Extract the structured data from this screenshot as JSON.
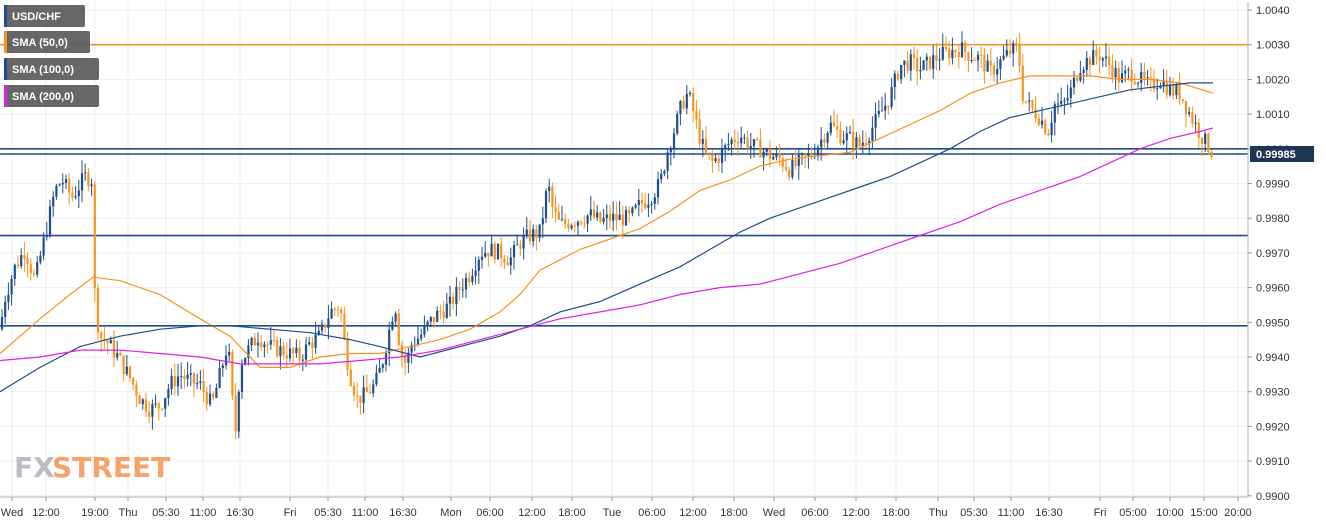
{
  "chart_data": {
    "type": "line",
    "subtype": "candlestick-with-moving-averages",
    "symbol": "USD/CHF",
    "legend": [
      {
        "label": "USD/CHF",
        "color": "#1f4e8c"
      },
      {
        "label": "SMA (50,0)",
        "color": "#f7931e"
      },
      {
        "label": "SMA (100,0)",
        "color": "#1f4e8c"
      },
      {
        "label": "SMA (200,0)",
        "color": "#e020e0"
      }
    ],
    "legend_position": "top-left",
    "y_ticks": [
      "1.0040",
      "1.0030",
      "1.0020",
      "1.0010",
      "1.0000",
      "0.9990",
      "0.9980",
      "0.9970",
      "0.9960",
      "0.9950",
      "0.9940",
      "0.9930",
      "0.9920",
      "0.9910",
      "0.9900"
    ],
    "ylim": [
      0.9895,
      1.0045
    ],
    "x_ticks": [
      "Wed",
      "12:00",
      "19:00",
      "Thu",
      "05:30",
      "11:00",
      "16:30",
      "Fri",
      "05:30",
      "11:00",
      "16:30",
      "Mon",
      "06:00",
      "12:00",
      "18:00",
      "Tue",
      "06:00",
      "12:00",
      "18:00",
      "Wed",
      "06:00",
      "12:00",
      "18:00",
      "Thu",
      "05:30",
      "11:00",
      "16:30",
      "Fri",
      "05:00",
      "10:00",
      "15:00",
      "20:00"
    ],
    "current_price": "0.99985",
    "horizontal_levels": [
      {
        "value": 1.003,
        "color": "#f7931e"
      },
      {
        "value": 1.0,
        "color": "#1f4e8c"
      },
      {
        "value": 0.99985,
        "color": "#1f4e8c"
      },
      {
        "value": 0.9975,
        "color": "#1f4e8c"
      },
      {
        "value": 0.9949,
        "color": "#1f4e8c"
      }
    ],
    "price_path": [
      [
        0,
        0.9948
      ],
      [
        5,
        0.9957
      ],
      [
        15,
        0.9966
      ],
      [
        25,
        0.9971
      ],
      [
        35,
        0.9962
      ],
      [
        45,
        0.9975
      ],
      [
        55,
        0.9988
      ],
      [
        62,
        0.9991
      ],
      [
        72,
        0.9986
      ],
      [
        85,
        0.9992
      ],
      [
        93,
        0.9991
      ],
      [
        95,
        0.9955
      ],
      [
        100,
        0.9946
      ],
      [
        108,
        0.9944
      ],
      [
        118,
        0.994
      ],
      [
        130,
        0.9934
      ],
      [
        140,
        0.9928
      ],
      [
        150,
        0.9925
      ],
      [
        160,
        0.9926
      ],
      [
        170,
        0.9932
      ],
      [
        180,
        0.9935
      ],
      [
        190,
        0.9933
      ],
      [
        200,
        0.9932
      ],
      [
        212,
        0.9926
      ],
      [
        220,
        0.9935
      ],
      [
        228,
        0.9944
      ],
      [
        233,
        0.9925
      ],
      [
        236,
        0.9918
      ],
      [
        240,
        0.9938
      ],
      [
        248,
        0.9942
      ],
      [
        258,
        0.9946
      ],
      [
        270,
        0.9943
      ],
      [
        280,
        0.9942
      ],
      [
        290,
        0.9941
      ],
      [
        300,
        0.994
      ],
      [
        310,
        0.9944
      ],
      [
        320,
        0.9946
      ],
      [
        330,
        0.9953
      ],
      [
        340,
        0.9955
      ],
      [
        345,
        0.9943
      ],
      [
        350,
        0.9935
      ],
      [
        357,
        0.9928
      ],
      [
        365,
        0.9929
      ],
      [
        375,
        0.9932
      ],
      [
        382,
        0.9938
      ],
      [
        388,
        0.9946
      ],
      [
        395,
        0.9956
      ],
      [
        400,
        0.9942
      ],
      [
        406,
        0.9938
      ],
      [
        412,
        0.9944
      ],
      [
        420,
        0.9946
      ],
      [
        430,
        0.995
      ],
      [
        440,
        0.9953
      ],
      [
        450,
        0.9955
      ],
      [
        460,
        0.996
      ],
      [
        470,
        0.9964
      ],
      [
        480,
        0.997
      ],
      [
        490,
        0.9971
      ],
      [
        500,
        0.997
      ],
      [
        510,
        0.9968
      ],
      [
        520,
        0.9973
      ],
      [
        530,
        0.9975
      ],
      [
        540,
        0.9976
      ],
      [
        548,
        0.999
      ],
      [
        553,
        0.9982
      ],
      [
        560,
        0.9978
      ],
      [
        570,
        0.9979
      ],
      [
        580,
        0.998
      ],
      [
        590,
        0.9981
      ],
      [
        600,
        0.9979
      ],
      [
        610,
        0.998
      ],
      [
        620,
        0.998
      ],
      [
        630,
        0.998
      ],
      [
        640,
        0.9984
      ],
      [
        650,
        0.9986
      ],
      [
        660,
        0.999
      ],
      [
        668,
        1.0
      ],
      [
        675,
        1.0006
      ],
      [
        682,
        1.0013
      ],
      [
        688,
        1.0016
      ],
      [
        694,
        1.001
      ],
      [
        700,
        1.0003
      ],
      [
        706,
        0.9998
      ],
      [
        712,
        0.9996
      ],
      [
        720,
        0.9998
      ],
      [
        730,
        1.0002
      ],
      [
        740,
        1.0004
      ],
      [
        750,
        1.0001
      ],
      [
        760,
        1.0
      ],
      [
        770,
        0.9998
      ],
      [
        780,
        0.9997
      ],
      [
        790,
        0.9994
      ],
      [
        800,
        0.9996
      ],
      [
        810,
        0.9998
      ],
      [
        820,
        1.0002
      ],
      [
        830,
        1.0007
      ],
      [
        840,
        1.0004
      ],
      [
        850,
        1.0003
      ],
      [
        860,
        1.0001
      ],
      [
        870,
        1.0005
      ],
      [
        880,
        1.001
      ],
      [
        890,
        1.0015
      ],
      [
        900,
        1.0024
      ],
      [
        910,
        1.0025
      ],
      [
        920,
        1.0023
      ],
      [
        930,
        1.0025
      ],
      [
        940,
        1.0027
      ],
      [
        950,
        1.0028
      ],
      [
        960,
        1.0029
      ],
      [
        970,
        1.0027
      ],
      [
        980,
        1.0026
      ],
      [
        990,
        1.0022
      ],
      [
        1000,
        1.0025
      ],
      [
        1010,
        1.0028
      ],
      [
        1018,
        1.0029
      ],
      [
        1023,
        1.0015
      ],
      [
        1030,
        1.0012
      ],
      [
        1040,
        1.0009
      ],
      [
        1048,
        1.0005
      ],
      [
        1055,
        1.0013
      ],
      [
        1062,
        1.0012
      ],
      [
        1070,
        1.0016
      ],
      [
        1080,
        1.0024
      ],
      [
        1090,
        1.0026
      ],
      [
        1100,
        1.0027
      ],
      [
        1110,
        1.0024
      ],
      [
        1120,
        1.002
      ],
      [
        1130,
        1.0022
      ],
      [
        1140,
        1.002
      ],
      [
        1150,
        1.0018
      ],
      [
        1160,
        1.002
      ],
      [
        1170,
        1.0017
      ],
      [
        1180,
        1.0016
      ],
      [
        1190,
        1.001
      ],
      [
        1197,
        1.0006
      ],
      [
        1203,
        1.0003
      ],
      [
        1210,
        1.0
      ],
      [
        1214,
        0.99985
      ]
    ],
    "sma50": [
      [
        0,
        0.9941
      ],
      [
        40,
        0.9951
      ],
      [
        70,
        0.9958
      ],
      [
        93,
        0.9963
      ],
      [
        120,
        0.9962
      ],
      [
        160,
        0.9958
      ],
      [
        200,
        0.9951
      ],
      [
        230,
        0.9946
      ],
      [
        260,
        0.9937
      ],
      [
        290,
        0.9937
      ],
      [
        320,
        0.994
      ],
      [
        350,
        0.9941
      ],
      [
        380,
        0.9941
      ],
      [
        410,
        0.9943
      ],
      [
        440,
        0.9945
      ],
      [
        470,
        0.9948
      ],
      [
        500,
        0.9953
      ],
      [
        520,
        0.9958
      ],
      [
        540,
        0.9965
      ],
      [
        560,
        0.9968
      ],
      [
        580,
        0.9971
      ],
      [
        610,
        0.9974
      ],
      [
        640,
        0.9977
      ],
      [
        670,
        0.9982
      ],
      [
        700,
        0.9988
      ],
      [
        730,
        0.9991
      ],
      [
        760,
        0.9995
      ],
      [
        790,
        0.9997
      ],
      [
        820,
        0.9998
      ],
      [
        850,
        0.9999
      ],
      [
        880,
        1.0003
      ],
      [
        910,
        1.0007
      ],
      [
        940,
        1.0011
      ],
      [
        970,
        1.0016
      ],
      [
        1000,
        1.0019
      ],
      [
        1030,
        1.0021
      ],
      [
        1060,
        1.0021
      ],
      [
        1090,
        1.0021
      ],
      [
        1120,
        1.002
      ],
      [
        1150,
        1.002
      ],
      [
        1180,
        1.0019
      ],
      [
        1213,
        1.0016
      ]
    ],
    "sma100": [
      [
        0,
        0.993
      ],
      [
        40,
        0.9937
      ],
      [
        80,
        0.9943
      ],
      [
        120,
        0.9946
      ],
      [
        160,
        0.9948
      ],
      [
        200,
        0.9949
      ],
      [
        230,
        0.9949
      ],
      [
        270,
        0.9948
      ],
      [
        310,
        0.9947
      ],
      [
        350,
        0.9945
      ],
      [
        380,
        0.9943
      ],
      [
        420,
        0.994
      ],
      [
        460,
        0.9943
      ],
      [
        500,
        0.9946
      ],
      [
        530,
        0.9949
      ],
      [
        560,
        0.9953
      ],
      [
        600,
        0.9956
      ],
      [
        640,
        0.9961
      ],
      [
        680,
        0.9966
      ],
      [
        710,
        0.9971
      ],
      [
        740,
        0.9976
      ],
      [
        770,
        0.998
      ],
      [
        800,
        0.9983
      ],
      [
        830,
        0.9986
      ],
      [
        860,
        0.9989
      ],
      [
        890,
        0.9992
      ],
      [
        920,
        0.9996
      ],
      [
        950,
        1.0
      ],
      [
        980,
        1.0005
      ],
      [
        1010,
        1.0009
      ],
      [
        1040,
        1.0011
      ],
      [
        1070,
        1.0013
      ],
      [
        1100,
        1.0015
      ],
      [
        1130,
        1.0017
      ],
      [
        1160,
        1.0018
      ],
      [
        1190,
        1.0019
      ],
      [
        1213,
        1.0019
      ]
    ],
    "sma200": [
      [
        0,
        0.9939
      ],
      [
        40,
        0.994
      ],
      [
        80,
        0.9942
      ],
      [
        120,
        0.9942
      ],
      [
        160,
        0.9941
      ],
      [
        200,
        0.994
      ],
      [
        240,
        0.9938
      ],
      [
        280,
        0.9938
      ],
      [
        320,
        0.9938
      ],
      [
        360,
        0.9939
      ],
      [
        400,
        0.994
      ],
      [
        440,
        0.9942
      ],
      [
        480,
        0.9945
      ],
      [
        520,
        0.9948
      ],
      [
        560,
        0.9951
      ],
      [
        600,
        0.9953
      ],
      [
        640,
        0.9955
      ],
      [
        680,
        0.9958
      ],
      [
        720,
        0.996
      ],
      [
        760,
        0.9961
      ],
      [
        800,
        0.9964
      ],
      [
        840,
        0.9967
      ],
      [
        880,
        0.9971
      ],
      [
        920,
        0.9975
      ],
      [
        960,
        0.9979
      ],
      [
        1000,
        0.9984
      ],
      [
        1040,
        0.9988
      ],
      [
        1080,
        0.9992
      ],
      [
        1110,
        0.9996
      ],
      [
        1140,
        1.0
      ],
      [
        1170,
        1.0003
      ],
      [
        1200,
        1.0005
      ],
      [
        1213,
        1.0006
      ]
    ]
  }
}
